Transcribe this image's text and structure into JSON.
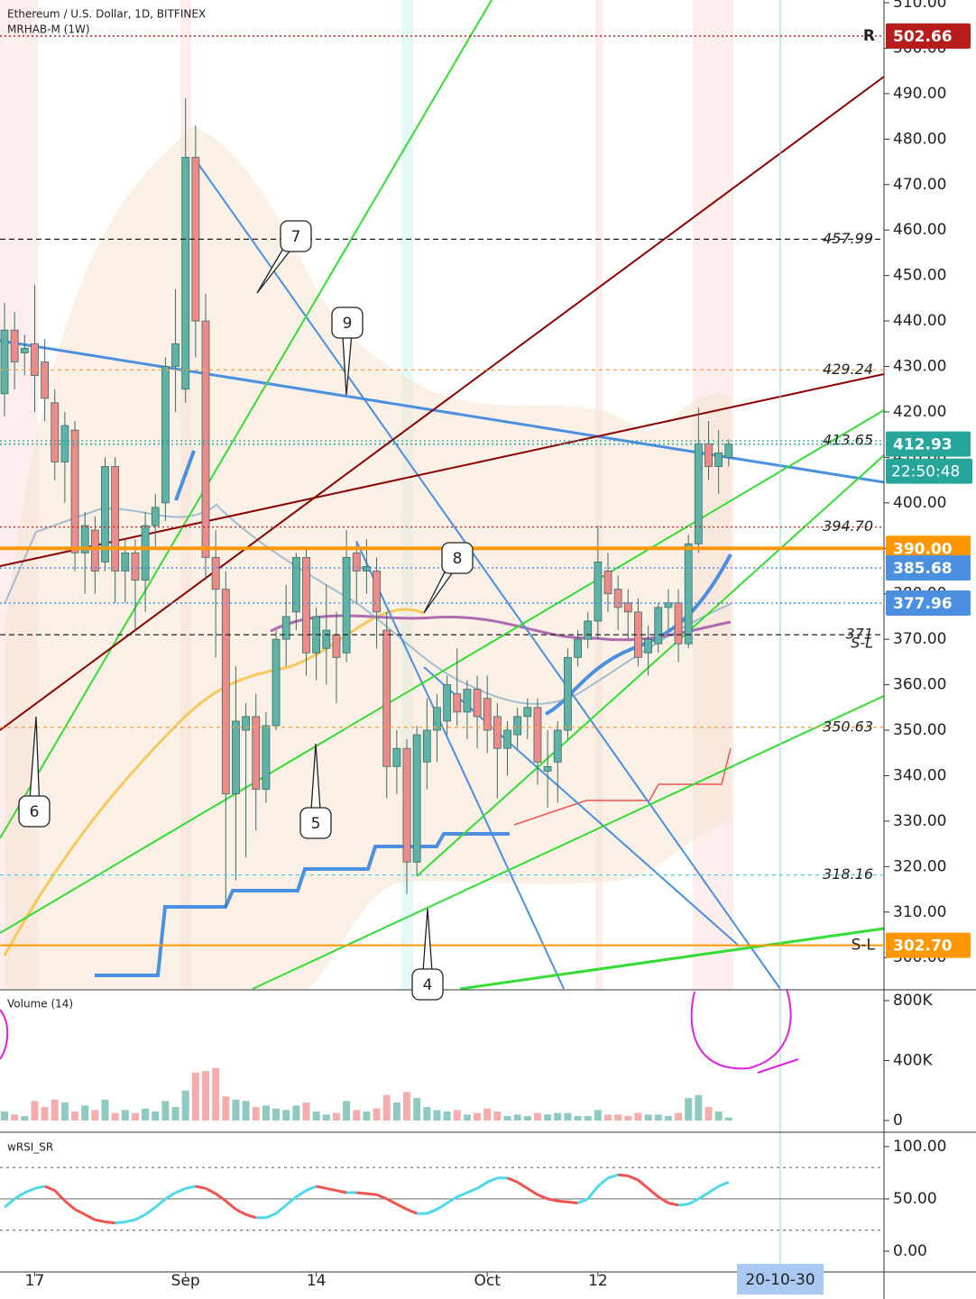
{
  "chart_data": [
    {
      "type": "candlestick",
      "title": "Ethereum / U.S. Dollar, 1D, BITFINEX",
      "subtitle": "MRHAB-M (1W)",
      "categories": [
        null,
        null,
        null,
        "17",
        null,
        null,
        null,
        null,
        null,
        null,
        null,
        null,
        null,
        null,
        null,
        null,
        null,
        null,
        "Sep",
        null,
        null,
        null,
        null,
        null,
        null,
        null,
        null,
        null,
        null,
        null,
        null,
        "14",
        null,
        null,
        null,
        null,
        null,
        null,
        null,
        null,
        null,
        null,
        null,
        null,
        null,
        null,
        null,
        null,
        "Oct",
        null,
        null,
        null,
        null,
        null,
        null,
        null,
        null,
        null,
        null,
        "12",
        null,
        null,
        null,
        null,
        null,
        null,
        null,
        null,
        null,
        null,
        null,
        null,
        null
      ],
      "open": [
        424,
        438,
        433,
        435,
        431,
        422,
        409,
        416,
        389,
        394,
        387,
        408,
        385,
        389,
        383,
        395,
        400,
        430,
        425,
        476,
        440,
        388,
        381,
        336,
        350,
        353,
        337,
        351,
        370,
        376,
        388,
        367,
        368,
        371,
        367,
        389,
        385,
        385,
        372,
        342,
        346,
        321,
        343,
        350,
        352,
        358,
        354,
        359,
        357,
        353,
        346,
        349,
        353,
        355,
        341,
        343,
        350,
        366,
        370,
        374,
        385,
        381,
        378,
        376,
        367,
        369,
        377,
        378,
        369,
        391,
        413,
        408,
        410
      ],
      "high": [
        444,
        442,
        437,
        448,
        436,
        425,
        420,
        418,
        398,
        397,
        410,
        410,
        392,
        392,
        398,
        402,
        432,
        447,
        489,
        483,
        446,
        394,
        385,
        364,
        356,
        358,
        354,
        372,
        382,
        389,
        390,
        377,
        382,
        376,
        394,
        391,
        392,
        388,
        376,
        350,
        348,
        351,
        357,
        358,
        362,
        368,
        361,
        362,
        362,
        356,
        352,
        355,
        357,
        357,
        350,
        352,
        368,
        372,
        376,
        395,
        389,
        384,
        381,
        379,
        373,
        378,
        381,
        381,
        393,
        421,
        418,
        416,
        414
      ],
      "low": [
        419,
        425,
        428,
        420,
        418,
        405,
        400,
        385,
        380,
        380,
        385,
        378,
        378,
        372,
        376,
        390,
        396,
        420,
        422,
        432,
        383,
        366,
        311,
        317,
        322,
        328,
        334,
        350,
        364,
        372,
        362,
        361,
        360,
        356,
        365,
        378,
        380,
        368,
        335,
        336,
        314,
        318,
        337,
        343,
        349,
        351,
        348,
        346,
        345,
        335,
        340,
        346,
        348,
        338,
        333,
        334,
        348,
        364,
        368,
        370,
        376,
        372,
        370,
        364,
        362,
        367,
        372,
        365,
        368,
        389,
        405,
        402,
        408
      ],
      "close": [
        438,
        431,
        434,
        428,
        423,
        409,
        417,
        389,
        395,
        385,
        408,
        385,
        389,
        383,
        395,
        399,
        430,
        435,
        476,
        440,
        388,
        381,
        336,
        352,
        353,
        337,
        351,
        370,
        375,
        388,
        367,
        375,
        372,
        366,
        388,
        385,
        386,
        376,
        342,
        346,
        321,
        349,
        350,
        355,
        360,
        354,
        359,
        353,
        350,
        346,
        350,
        353,
        355,
        343,
        342,
        350,
        366,
        370,
        374,
        387,
        380,
        377,
        376,
        366,
        370,
        377,
        378,
        369,
        391,
        413,
        408,
        411,
        412.93
      ],
      "up_color": "#5fb3a6",
      "down_color": "#ef8a8a",
      "ylim": [
        293.1,
        510.6
      ],
      "yticks": [
        {
          "value": 300,
          "label": "300.00"
        },
        {
          "value": 310,
          "label": "310.00"
        },
        {
          "value": 320,
          "label": "320.00"
        },
        {
          "value": 330,
          "label": "330.00"
        },
        {
          "value": 340,
          "label": "340.00"
        },
        {
          "value": 350,
          "label": "350.00"
        },
        {
          "value": 360,
          "label": "360.00"
        },
        {
          "value": 370,
          "label": "370.00"
        },
        {
          "value": 380,
          "label": "380.00"
        },
        {
          "value": 390,
          "label": "390.00"
        },
        {
          "value": 400,
          "label": "400.00"
        },
        {
          "value": 410,
          "label": "410.00"
        },
        {
          "value": 420,
          "label": "420.00"
        },
        {
          "value": 430,
          "label": "430.00"
        },
        {
          "value": 440,
          "label": "440.00"
        },
        {
          "value": 450,
          "label": "450.00"
        },
        {
          "value": 460,
          "label": "460.00"
        },
        {
          "value": 470,
          "label": "470.00"
        },
        {
          "value": 480,
          "label": "480.00"
        },
        {
          "value": 490,
          "label": "490.00"
        },
        {
          "value": 500,
          "label": "500.00"
        },
        {
          "value": 510,
          "label": "510.00"
        }
      ],
      "levels": [
        {
          "value": 457.99,
          "label": "457.99",
          "color": "#222",
          "dash": "6 4"
        },
        {
          "value": 429.24,
          "label": "429.24",
          "color": "#f5a04a",
          "dash": "4 4"
        },
        {
          "value": 413.65,
          "label": "413.65",
          "color": "#26a69a",
          "dash": "2 3"
        },
        {
          "value": 394.7,
          "label": "394.70",
          "color": "#c62828",
          "dash": "2 3"
        },
        {
          "value": 371,
          "label": "371",
          "note": "S-L",
          "color": "#222",
          "dash": "6 4"
        },
        {
          "value": 350.63,
          "label": "350.63",
          "color": "#f5a04a",
          "dash": "4 4"
        },
        {
          "value": 318.16,
          "label": "318.16",
          "color": "#4dd0e1",
          "dash": "4 4"
        }
      ],
      "price_labels": [
        {
          "value": 502.66,
          "label": "502.66",
          "note": "R",
          "color": "#b71c1c",
          "line": "#b71c1c",
          "dash": "2 3"
        },
        {
          "value": 412.93,
          "label": "412.93",
          "countdown": "22:50:48",
          "color": "#26a69a",
          "line": "#26a69a",
          "dash": "2 3"
        },
        {
          "value": 390.0,
          "label": "390.00",
          "color": "#ff9800",
          "line": "#ff9800",
          "dash": "",
          "width": 4
        },
        {
          "value": 385.68,
          "label": "385.68",
          "color": "#4a8fe0",
          "line": "#4a8fe0",
          "dash": "2 3"
        },
        {
          "value": 377.96,
          "label": "377.96",
          "color": "#4a8fe0",
          "line": "#4a8fe0",
          "dash": "2 3"
        },
        {
          "value": 302.7,
          "label": "302.70",
          "note": "S-L",
          "color": "#ff9800",
          "line": "#ff9800",
          "dash": "",
          "width": 2
        }
      ],
      "annotations": [
        "7",
        "9",
        "8",
        "6",
        "5",
        "4"
      ],
      "cursor_label": "20-10-30"
    },
    {
      "type": "bar",
      "title": "Volume (14)",
      "values": [
        60000,
        40000,
        30000,
        130000,
        90000,
        140000,
        120000,
        60000,
        100000,
        70000,
        140000,
        50000,
        70000,
        50000,
        80000,
        60000,
        130000,
        90000,
        200000,
        320000,
        330000,
        350000,
        160000,
        140000,
        130000,
        90000,
        100000,
        80000,
        70000,
        100000,
        120000,
        60000,
        40000,
        50000,
        130000,
        70000,
        60000,
        80000,
        170000,
        120000,
        190000,
        150000,
        90000,
        70000,
        60000,
        70000,
        40000,
        50000,
        80000,
        60000,
        30000,
        40000,
        30000,
        50000,
        40000,
        50000,
        50000,
        30000,
        30000,
        70000,
        40000,
        40000,
        30000,
        50000,
        40000,
        40000,
        30000,
        50000,
        150000,
        170000,
        90000,
        60000,
        20000
      ],
      "ylim": [
        -72000,
        866000
      ],
      "yticks": [
        0,
        {
          "value": 400000,
          "label": "400K"
        },
        {
          "value": 800000,
          "label": "800K"
        }
      ]
    },
    {
      "type": "line",
      "title": "wRSI_SR",
      "values": [
        42,
        50,
        56,
        60,
        62,
        58,
        48,
        40,
        35,
        30,
        28,
        27,
        28,
        30,
        35,
        42,
        50,
        56,
        60,
        62,
        60,
        55,
        48,
        40,
        35,
        32,
        32,
        36,
        44,
        52,
        58,
        62,
        60,
        58,
        56,
        56,
        55,
        54,
        50,
        45,
        40,
        36,
        36,
        40,
        46,
        52,
        56,
        60,
        66,
        70,
        70,
        66,
        60,
        54,
        50,
        48,
        47,
        46,
        50,
        62,
        70,
        73,
        72,
        68,
        60,
        52,
        46,
        44,
        45,
        50,
        56,
        62,
        66
      ],
      "up_color": "#4dd9e8",
      "down_color": "#ef5350",
      "ylim": [
        -19,
        112
      ],
      "yticks": [
        {
          "value": 0,
          "label": "0.00"
        },
        {
          "value": 50,
          "label": "50.00"
        },
        {
          "value": 100,
          "label": "100.00"
        }
      ],
      "levels": [
        80,
        20
      ]
    }
  ]
}
